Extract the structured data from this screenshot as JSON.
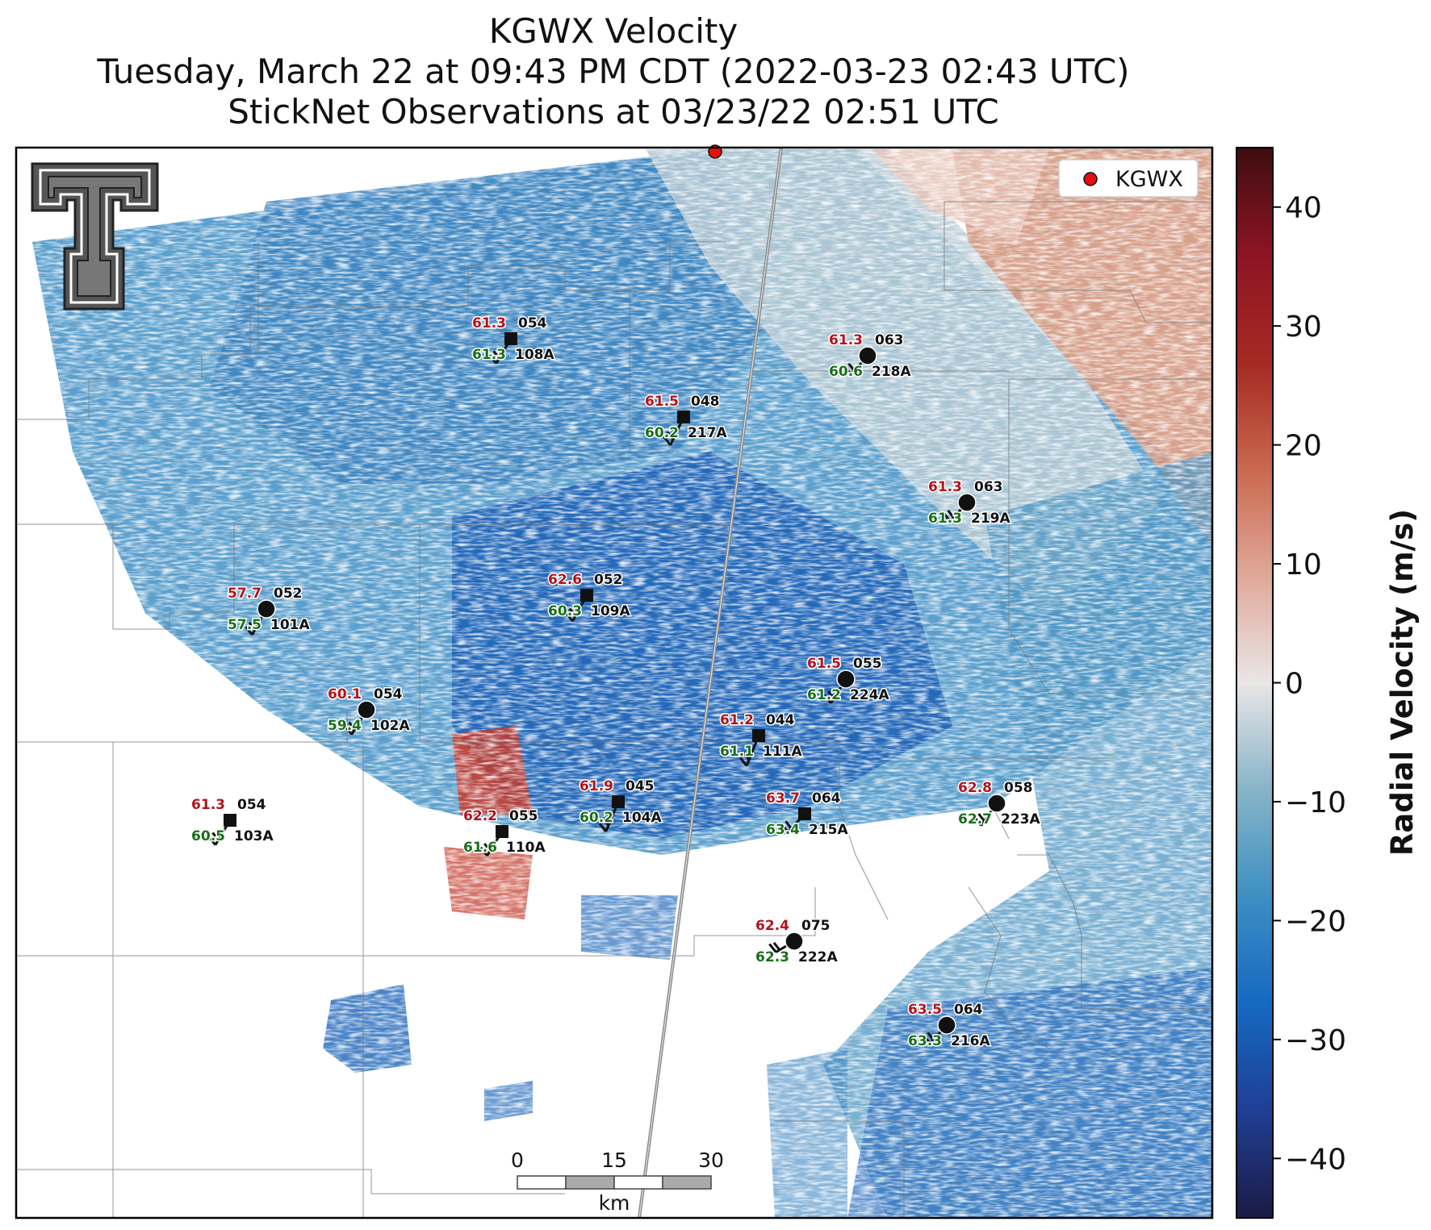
{
  "title": {
    "line1": "KGWX Velocity",
    "line2": "Tuesday, March 22 at 09:43 PM CDT (2022-03-23 02:43 UTC)",
    "line3": "StickNet Observations at 03/23/22 02:51 UTC"
  },
  "legend": {
    "label": "KGWX",
    "marker_color": "#e41010"
  },
  "colorbar": {
    "label": "Radial Velocity (m/s)",
    "ticks": [
      "40",
      "30",
      "20",
      "10",
      "0",
      "−10",
      "−20",
      "−30",
      "−40"
    ],
    "range": [
      -45,
      45
    ],
    "colors": [
      "#1c1b45",
      "#1f3f95",
      "#1669c1",
      "#3d8fc2",
      "#86b4c7",
      "#e9e6e6",
      "#e0a898",
      "#c9684f",
      "#a42a22",
      "#8e1424",
      "#3d0e10"
    ]
  },
  "scale_bar": {
    "ticks": [
      "0",
      "15",
      "30"
    ],
    "unit": "km"
  },
  "logo": {
    "name": "texas-tech-double-t-logo"
  },
  "stations": [
    {
      "id": "108A",
      "temp": "61.3",
      "dew": "61.3",
      "dir": "054",
      "marker": "square"
    },
    {
      "id": "218A",
      "temp": "61.3",
      "dew": "60.6",
      "dir": "063",
      "marker": "circle"
    },
    {
      "id": "217A",
      "temp": "61.5",
      "dew": "60.2",
      "dir": "048",
      "marker": "square"
    },
    {
      "id": "219A",
      "temp": "61.3",
      "dew": "61.3",
      "dir": "063",
      "marker": "circle"
    },
    {
      "id": "109A",
      "temp": "62.6",
      "dew": "60.3",
      "dir": "052",
      "marker": "square"
    },
    {
      "id": "101A",
      "temp": "57.7",
      "dew": "57.5",
      "dir": "052",
      "marker": "circle"
    },
    {
      "id": "224A",
      "temp": "61.5",
      "dew": "61.2",
      "dir": "055",
      "marker": "circle"
    },
    {
      "id": "102A",
      "temp": "60.1",
      "dew": "59.4",
      "dir": "054",
      "marker": "circle"
    },
    {
      "id": "111A",
      "temp": "61.2",
      "dew": "61.1",
      "dir": "044",
      "marker": "square"
    },
    {
      "id": "104A",
      "temp": "61.9",
      "dew": "60.2",
      "dir": "045",
      "marker": "square"
    },
    {
      "id": "215A",
      "temp": "63.7",
      "dew": "63.4",
      "dir": "064",
      "marker": "square"
    },
    {
      "id": "223A",
      "temp": "62.8",
      "dew": "62.7",
      "dir": "058",
      "marker": "circle"
    },
    {
      "id": "103A",
      "temp": "61.3",
      "dew": "60.5",
      "dir": "054",
      "marker": "square"
    },
    {
      "id": "110A",
      "temp": "62.2",
      "dew": "61.6",
      "dir": "055",
      "marker": "square"
    },
    {
      "id": "222A",
      "temp": "62.4",
      "dew": "62.3",
      "dir": "075",
      "marker": "circle"
    },
    {
      "id": "216A",
      "temp": "63.5",
      "dew": "63.3",
      "dir": "064",
      "marker": "circle"
    }
  ]
}
